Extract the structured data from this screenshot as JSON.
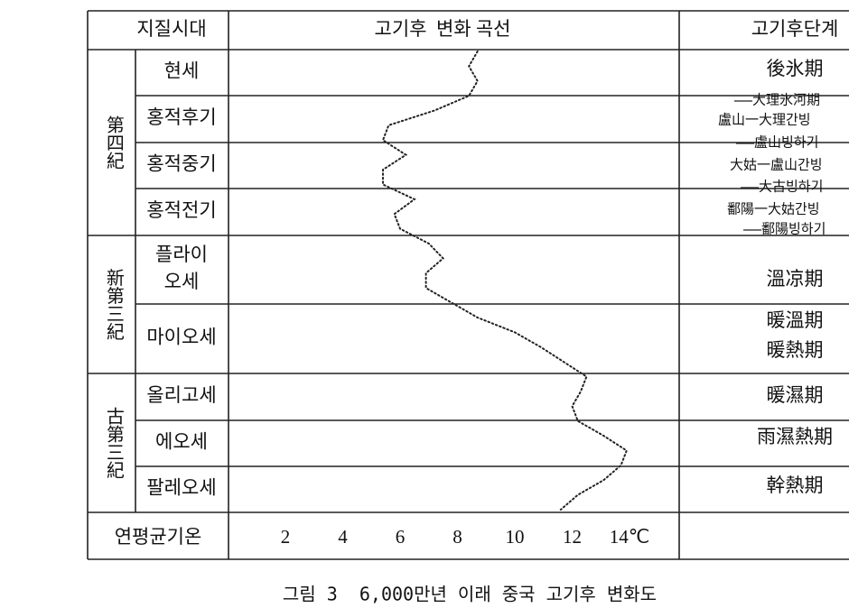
{
  "header": {
    "era": "지질시대",
    "curve": "고기후  변화 곡선",
    "stage": "고기후단계"
  },
  "eras": [
    "第四紀",
    "新第三紀",
    "古第三紀"
  ],
  "epochs": [
    [
      "현세"
    ],
    [
      "홍적후기"
    ],
    [
      "홍적중기"
    ],
    [
      "홍적전기"
    ],
    [
      "플라이",
      "오세"
    ],
    [
      "마이오세"
    ],
    [
      "올리고세"
    ],
    [
      "에오세"
    ],
    [
      "팔레오세"
    ]
  ],
  "stages": {
    "holocene": "後氷期",
    "pleistocene": [
      "大理氷河期",
      "盧山一大理간빙",
      "盧山빙하기",
      "大姑一盧山간빙",
      "大古빙하기",
      "鄱陽一大姑간빙",
      "鄱陽빙하기"
    ],
    "pliocene": "溫凉期",
    "miocene": [
      "暖溫期",
      "暖熱期"
    ],
    "oligocene": "暖濕期",
    "eocene": "雨濕熱期",
    "paleocene": "幹熱期"
  },
  "footer": "연평균기온",
  "chart_data": {
    "type": "line",
    "x_label": "연평균기온",
    "xlim": [
      2,
      14
    ],
    "xticks": [
      2,
      4,
      6,
      8,
      10,
      {
        "value": 12,
        "label": "12"
      },
      {
        "value": 14,
        "label": "14℃"
      }
    ],
    "values": [
      8.7,
      8.4,
      8.7,
      8.4,
      7.2,
      5.6,
      5.4,
      6.2,
      5.4,
      5.4,
      6.5,
      5.8,
      6.0,
      7.0,
      7.5,
      6.9,
      6.9,
      7.8,
      8.7,
      10.0,
      10.9,
      11.7,
      12.5,
      12.3,
      12.0,
      12.2,
      13.1,
      13.9,
      13.7,
      13.1,
      12.2,
      11.6
    ]
  },
  "caption": "그림 3  6,000만년 이래 중국 고기후 변화도"
}
